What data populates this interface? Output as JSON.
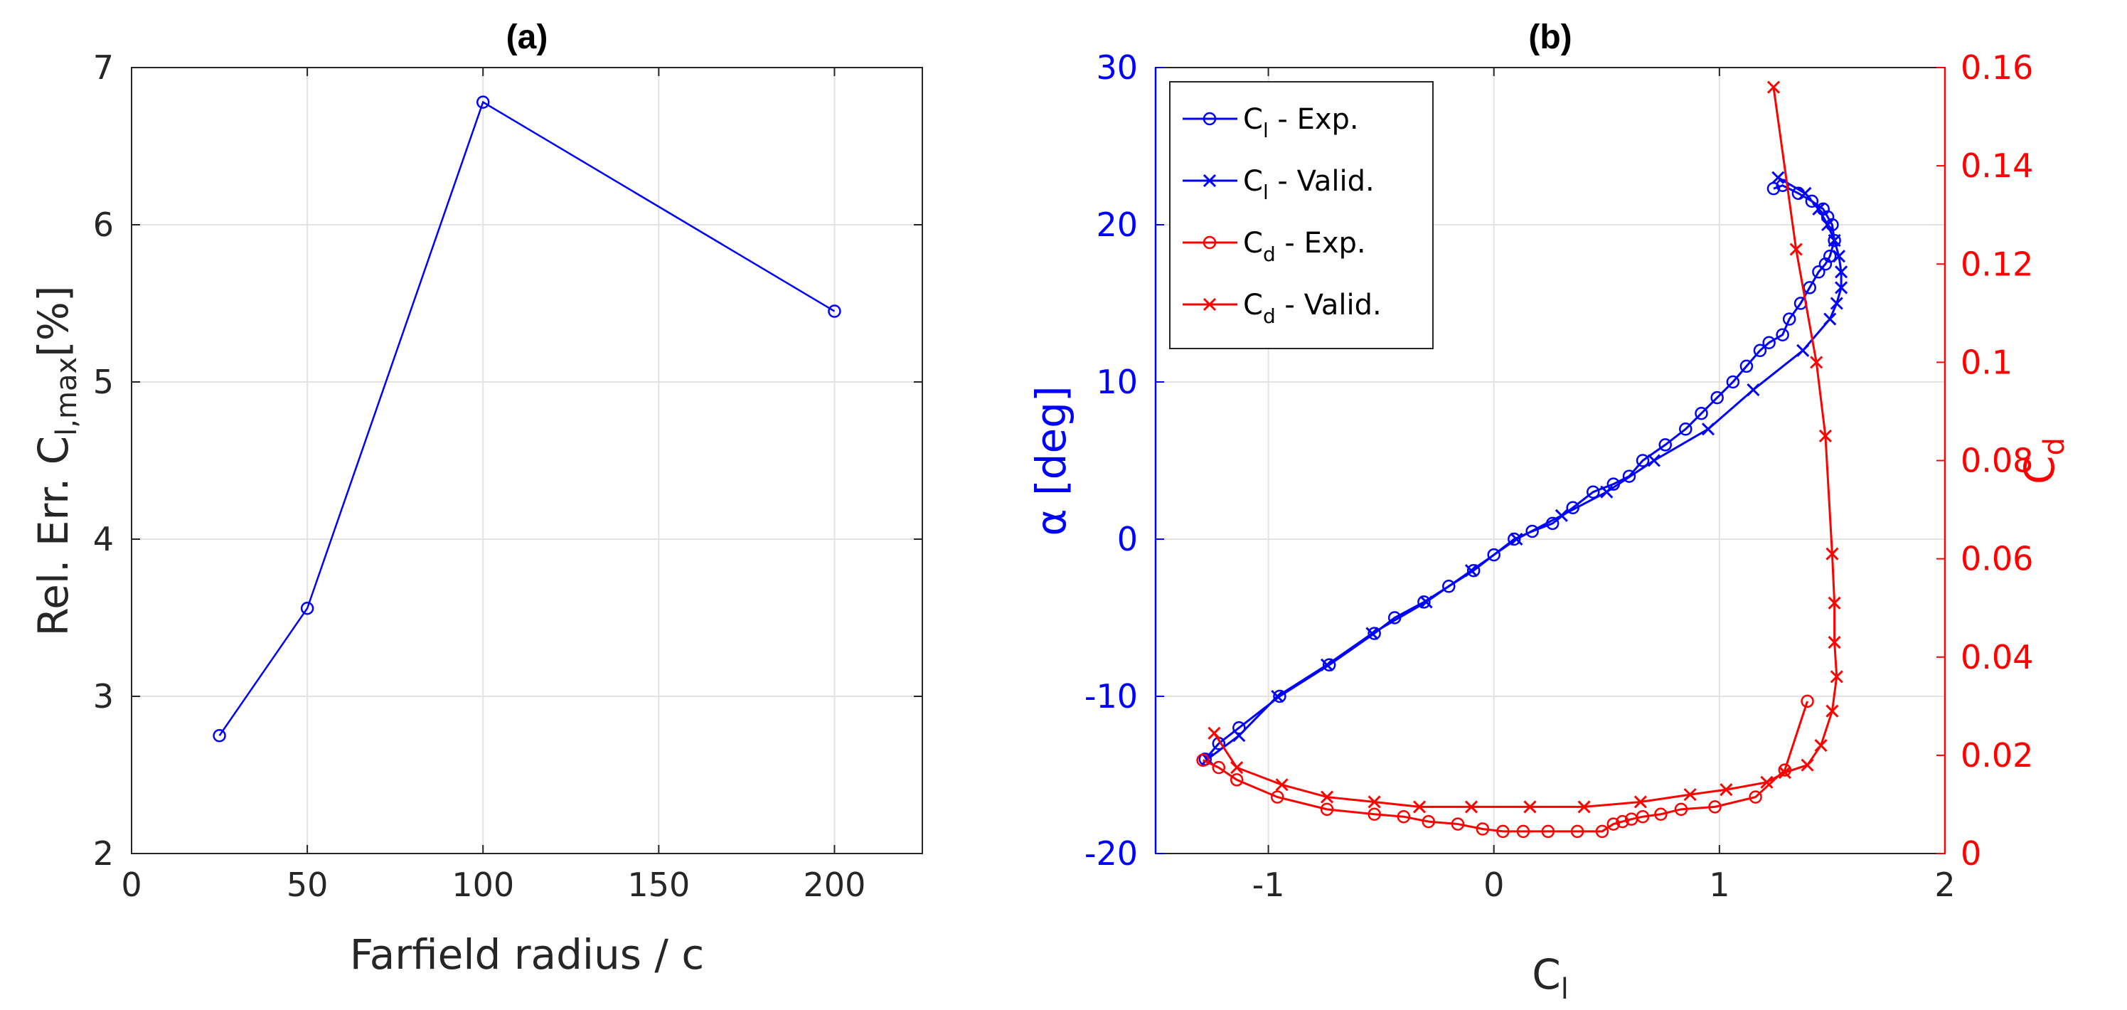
{
  "chart_data": [
    {
      "type": "line",
      "panel": "a",
      "title": "(a)",
      "xlabel": "Farfield radius / c",
      "ylabel": {
        "main": "Rel. Err. C",
        "sub": "l,max",
        "suffix": "[%]"
      },
      "xlim": [
        0,
        225
      ],
      "ylim": [
        2,
        7
      ],
      "xticks": [
        0,
        50,
        100,
        150,
        200
      ],
      "yticks": [
        2,
        3,
        4,
        5,
        6,
        7
      ],
      "grid": true,
      "series": [
        {
          "name": "Rel. Err.",
          "color": "#0000ff",
          "marker": "circle",
          "x": [
            25,
            50,
            100,
            200
          ],
          "y": [
            2.75,
            3.56,
            6.78,
            5.45
          ]
        }
      ]
    },
    {
      "type": "line",
      "panel": "b",
      "title": "(b)",
      "xlabel": {
        "main": "C",
        "sub": "l"
      },
      "ylabel_left": {
        "text": "α [deg]",
        "color": "#0000ff"
      },
      "ylabel_right": {
        "main": "C",
        "sub": "d",
        "color": "#ff0000"
      },
      "xlim": [
        -1.5,
        2
      ],
      "ylim_left": [
        -20,
        30
      ],
      "ylim_right": [
        0,
        0.16
      ],
      "xticks": [
        -1,
        0,
        1,
        2
      ],
      "yticks_left": [
        -20,
        -10,
        0,
        10,
        20,
        30
      ],
      "yticks_right": [
        0,
        0.02,
        0.04,
        0.06,
        0.08,
        0.1,
        0.12,
        0.14,
        0.16
      ],
      "yticks_right_labels": [
        "0",
        "0.02",
        "0.04",
        "0.06",
        "0.08",
        "0.1",
        "0.12",
        "0.14",
        "0.16"
      ],
      "grid": true,
      "legend_position": "top-left",
      "series": [
        {
          "name": "C",
          "sub": "l",
          "suffix": " - Exp.",
          "color": "#0000ff",
          "marker": "circle",
          "axis": "left",
          "x": [
            -1.28,
            -1.22,
            -1.13,
            -0.95,
            -0.73,
            -0.53,
            -0.44,
            -0.31,
            -0.2,
            -0.09,
            0.0,
            0.09,
            0.17,
            0.26,
            0.35,
            0.44,
            0.53,
            0.6,
            0.66,
            0.76,
            0.85,
            0.92,
            0.99,
            1.06,
            1.12,
            1.18,
            1.22,
            1.28,
            1.31,
            1.36,
            1.4,
            1.44,
            1.47,
            1.49,
            1.51,
            1.5,
            1.48,
            1.46,
            1.41,
            1.35,
            1.28,
            1.24
          ],
          "y": [
            -14,
            -13,
            -12,
            -10,
            -8,
            -6,
            -5,
            -4,
            -3,
            -2,
            -1,
            0,
            0.5,
            1,
            2,
            3,
            3.5,
            4,
            5,
            6,
            7,
            8,
            9,
            10,
            11,
            12,
            12.5,
            13,
            14,
            15,
            16,
            17,
            17.5,
            18,
            19,
            20,
            20.5,
            21,
            21.5,
            22,
            22.5,
            22.3
          ]
        },
        {
          "name": "C",
          "sub": "l",
          "suffix": " - Valid.",
          "color": "#0000ff",
          "marker": "x",
          "axis": "left",
          "x": [
            -1.27,
            -1.13,
            -0.96,
            -0.74,
            -0.54,
            -0.3,
            -0.1,
            0.1,
            0.3,
            0.5,
            0.71,
            0.95,
            1.15,
            1.37,
            1.49,
            1.52,
            1.54,
            1.54,
            1.53,
            1.51,
            1.48,
            1.44,
            1.38,
            1.26
          ],
          "y": [
            -14,
            -12.5,
            -10,
            -8,
            -6,
            -4,
            -2,
            0,
            1.5,
            3,
            5,
            7,
            9.5,
            12,
            14,
            15,
            16,
            17,
            18,
            19,
            20,
            21,
            22,
            23
          ]
        },
        {
          "name": "C",
          "sub": "d",
          "suffix": " - Exp.",
          "color": "#ff0000",
          "marker": "circle",
          "axis": "right",
          "x": [
            1.39,
            1.29,
            1.16,
            0.98,
            0.83,
            0.74,
            0.66,
            0.61,
            0.57,
            0.53,
            0.48,
            0.37,
            0.24,
            0.13,
            0.04,
            -0.05,
            -0.16,
            -0.29,
            -0.4,
            -0.53,
            -0.74,
            -0.96,
            -1.14,
            -1.22,
            -1.29
          ],
          "y": [
            0.031,
            0.017,
            0.0115,
            0.0095,
            0.009,
            0.008,
            0.0075,
            0.007,
            0.0065,
            0.006,
            0.0045,
            0.0045,
            0.0045,
            0.0045,
            0.0045,
            0.005,
            0.006,
            0.0065,
            0.0075,
            0.008,
            0.009,
            0.0115,
            0.015,
            0.0175,
            0.019
          ]
        },
        {
          "name": "C",
          "sub": "d",
          "suffix": " - Valid.",
          "color": "#ff0000",
          "marker": "x",
          "axis": "right",
          "x": [
            1.24,
            1.34,
            1.43,
            1.47,
            1.5,
            1.51,
            1.51,
            1.52,
            1.5,
            1.45,
            1.39,
            1.29,
            1.21,
            1.03,
            0.87,
            0.65,
            0.4,
            0.16,
            -0.1,
            -0.33,
            -0.53,
            -0.74,
            -0.94,
            -1.14,
            -1.24
          ],
          "y": [
            0.156,
            0.123,
            0.1,
            0.085,
            0.061,
            0.051,
            0.043,
            0.036,
            0.029,
            0.022,
            0.018,
            0.0165,
            0.0145,
            0.013,
            0.012,
            0.0105,
            0.0095,
            0.0095,
            0.0095,
            0.0095,
            0.0105,
            0.0115,
            0.014,
            0.0175,
            0.0245
          ]
        }
      ]
    }
  ]
}
